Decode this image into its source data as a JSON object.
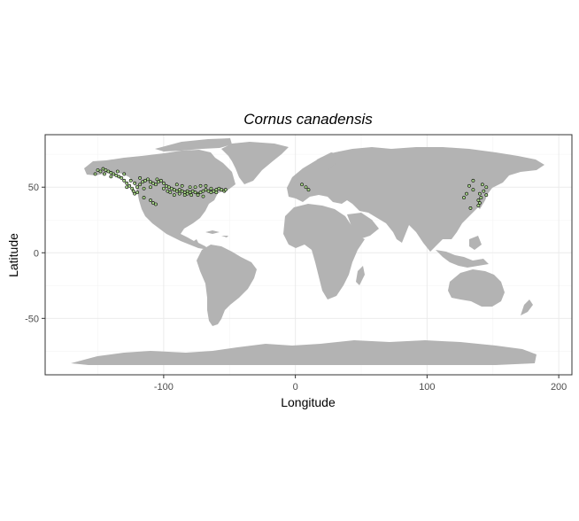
{
  "chart_data": {
    "type": "scatter",
    "title": "Cornus canadensis",
    "xlabel": "Longitude",
    "ylabel": "Latitude",
    "xlim": [
      -190,
      210
    ],
    "ylim": [
      -93,
      90
    ],
    "x_ticks": [
      -100,
      0,
      100,
      200
    ],
    "x_tick_labels": [
      "-100",
      "0",
      "100",
      "200"
    ],
    "y_ticks": [
      -50,
      0,
      50
    ],
    "y_tick_labels": [
      "-50",
      "0",
      "50"
    ],
    "grid": true,
    "colors": {
      "land": "#b3b3b3",
      "points_fill": "#a8d68a",
      "points_stroke": "#000000",
      "panel_border": "#333333"
    },
    "series": [
      {
        "values_lon_lat": [
          [
            -150,
            63
          ],
          [
            -148,
            62
          ],
          [
            -146,
            64
          ],
          [
            -144,
            63
          ],
          [
            -142,
            62
          ],
          [
            -140,
            61
          ],
          [
            -138,
            60
          ],
          [
            -136,
            59
          ],
          [
            -134,
            58
          ],
          [
            -132,
            57
          ],
          [
            -130,
            55
          ],
          [
            -128,
            53
          ],
          [
            -126,
            51
          ],
          [
            -124,
            49
          ],
          [
            -123,
            47
          ],
          [
            -122,
            45
          ],
          [
            -120,
            50
          ],
          [
            -118,
            52
          ],
          [
            -116,
            54
          ],
          [
            -114,
            55
          ],
          [
            -112,
            56
          ],
          [
            -110,
            54
          ],
          [
            -108,
            53
          ],
          [
            -106,
            52
          ],
          [
            -104,
            54
          ],
          [
            -102,
            55
          ],
          [
            -100,
            53
          ],
          [
            -98,
            51
          ],
          [
            -96,
            50
          ],
          [
            -94,
            49
          ],
          [
            -92,
            48
          ],
          [
            -90,
            47
          ],
          [
            -88,
            48
          ],
          [
            -86,
            47
          ],
          [
            -84,
            46
          ],
          [
            -82,
            47
          ],
          [
            -80,
            46
          ],
          [
            -78,
            47
          ],
          [
            -76,
            46
          ],
          [
            -74,
            45
          ],
          [
            -72,
            46
          ],
          [
            -70,
            47
          ],
          [
            -68,
            48
          ],
          [
            -66,
            47
          ],
          [
            -64,
            46
          ],
          [
            -62,
            47
          ],
          [
            -60,
            48
          ],
          [
            -58,
            49
          ],
          [
            -56,
            48
          ],
          [
            -54,
            47
          ],
          [
            -53,
            48
          ],
          [
            -90,
            52
          ],
          [
            -86,
            51
          ],
          [
            -80,
            50
          ],
          [
            -76,
            50
          ],
          [
            -72,
            51
          ],
          [
            -68,
            51
          ],
          [
            -95,
            46
          ],
          [
            -100,
            49
          ],
          [
            -110,
            50
          ],
          [
            -115,
            49
          ],
          [
            -120,
            46
          ],
          [
            -125,
            55
          ],
          [
            -130,
            60
          ],
          [
            -115,
            42
          ],
          [
            -110,
            40
          ],
          [
            -108,
            38
          ],
          [
            -106,
            37
          ],
          [
            -84,
            44
          ],
          [
            -88,
            45
          ],
          [
            -92,
            44
          ],
          [
            -97,
            47
          ],
          [
            -74,
            44
          ],
          [
            -70,
            43
          ],
          [
            -79,
            44
          ],
          [
            -82,
            45
          ],
          [
            -60,
            46
          ],
          [
            -64,
            49
          ],
          [
            -105,
            56
          ],
          [
            -118,
            57
          ],
          [
            -135,
            62
          ],
          [
            -152,
            60
          ],
          [
            -145,
            60
          ],
          [
            -140,
            58
          ],
          [
            -128,
            50
          ],
          [
            -122,
            53
          ],
          [
            5,
            52
          ],
          [
            8,
            50
          ],
          [
            10,
            48
          ],
          [
            142,
            52
          ],
          [
            145,
            50
          ],
          [
            140,
            45
          ],
          [
            141,
            42
          ],
          [
            139,
            40
          ],
          [
            140,
            38
          ],
          [
            139,
            36
          ],
          [
            133,
            34
          ],
          [
            130,
            45
          ],
          [
            128,
            42
          ],
          [
            135,
            48
          ],
          [
            132,
            51
          ],
          [
            135,
            55
          ],
          [
            145,
            44
          ],
          [
            143,
            47
          ]
        ]
      }
    ]
  }
}
